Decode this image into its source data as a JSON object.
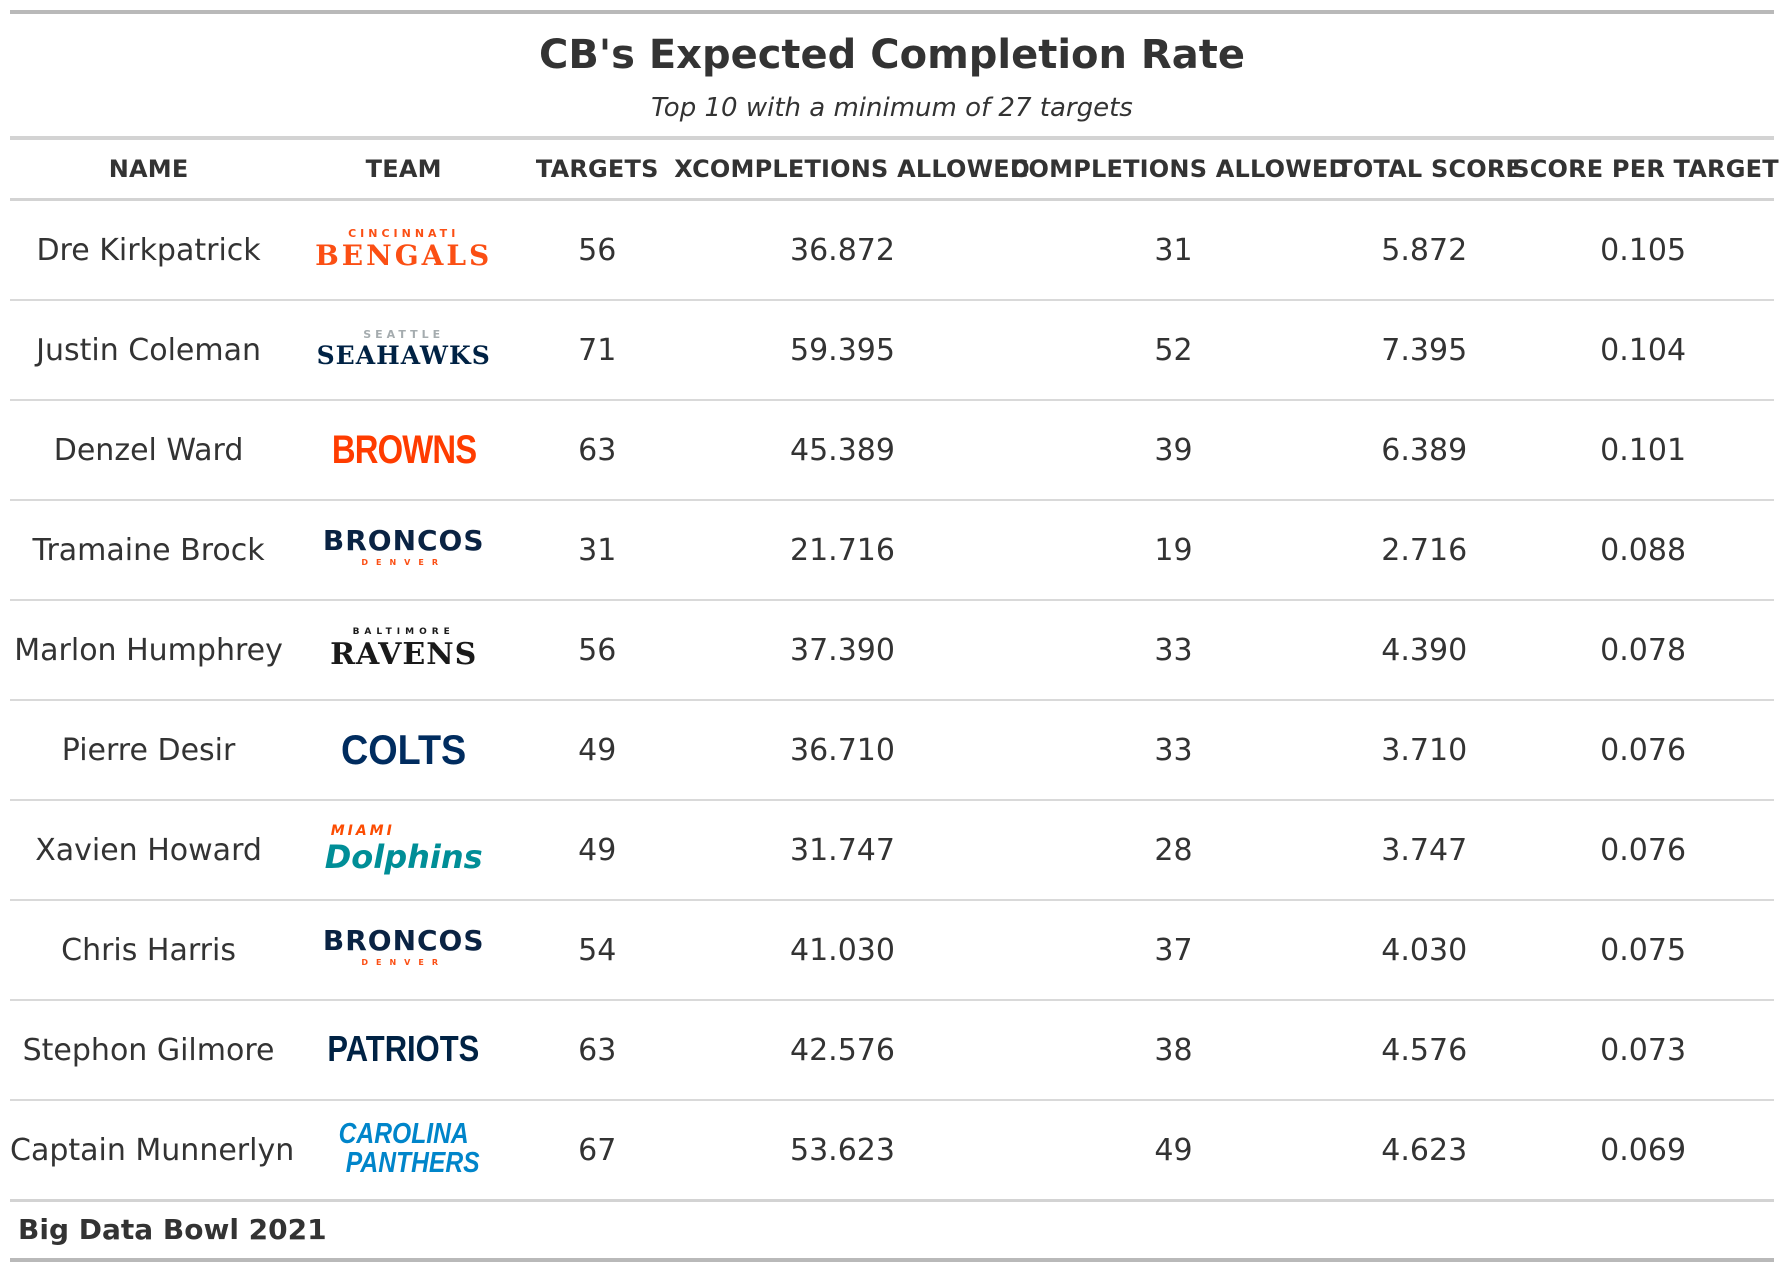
{
  "header": {
    "title": "CB's Expected Completion Rate",
    "subtitle": "Top 10 with a minimum of 27 targets"
  },
  "footer": {
    "source": "Big Data Bowl 2021"
  },
  "chart_data": {
    "type": "table",
    "columns": [
      "NAME",
      "TEAM",
      "TARGETS",
      "XCOMPLETIONS ALLOWED",
      "COMPLETIONS ALLOWED",
      "TOTAL SCORE",
      "SCORE PER TARGET"
    ],
    "rows": [
      {
        "name": "Dre Kirkpatrick",
        "targets": "56",
        "xcompletions": "36.872",
        "completions": "31",
        "total_score": "5.872",
        "score_per_target": "0.105",
        "team": {
          "icon": "bengals-logo",
          "top": "CINCINNATI",
          "main": "BENGALS",
          "bottom": "",
          "color": "#FB4F14",
          "accent": "#FB4F14"
        }
      },
      {
        "name": "Justin Coleman",
        "targets": "71",
        "xcompletions": "59.395",
        "completions": "52",
        "total_score": "7.395",
        "score_per_target": "0.104",
        "team": {
          "icon": "seahawks-logo",
          "top": "SEATTLE",
          "main": "SEAHAWKS",
          "bottom": "",
          "color": "#002244",
          "accent": "#A5ACAF"
        }
      },
      {
        "name": "Denzel Ward",
        "targets": "63",
        "xcompletions": "45.389",
        "completions": "39",
        "total_score": "6.389",
        "score_per_target": "0.101",
        "team": {
          "icon": "browns-logo",
          "top": "",
          "main": "BROWNS",
          "bottom": "",
          "color": "#FF3C00",
          "accent": "#FF3C00"
        }
      },
      {
        "name": "Tramaine Brock",
        "targets": "31",
        "xcompletions": "21.716",
        "completions": "19",
        "total_score": "2.716",
        "score_per_target": "0.088",
        "team": {
          "icon": "broncos-logo",
          "top": "",
          "main": "BRONCOS",
          "bottom": "DENVER",
          "color": "#0A2343",
          "accent": "#FB4F14"
        }
      },
      {
        "name": "Marlon Humphrey",
        "targets": "56",
        "xcompletions": "37.390",
        "completions": "33",
        "total_score": "4.390",
        "score_per_target": "0.078",
        "team": {
          "icon": "ravens-logo",
          "top": "BALTIMORE",
          "main": "RAVENS",
          "bottom": "",
          "color": "#1a1a1a",
          "accent": "#1a1a1a"
        }
      },
      {
        "name": "Pierre Desir",
        "targets": "49",
        "xcompletions": "36.710",
        "completions": "33",
        "total_score": "3.710",
        "score_per_target": "0.076",
        "team": {
          "icon": "colts-logo",
          "top": "",
          "main": "COLTS",
          "bottom": "",
          "color": "#002C5F",
          "accent": "#002C5F"
        }
      },
      {
        "name": "Xavien Howard",
        "targets": "49",
        "xcompletions": "31.747",
        "completions": "28",
        "total_score": "3.747",
        "score_per_target": "0.076",
        "team": {
          "icon": "dolphins-logo",
          "top": "MIAMI",
          "main": "Dolphins",
          "bottom": "",
          "color": "#008E97",
          "accent": "#FC4C02"
        }
      },
      {
        "name": "Chris Harris",
        "targets": "54",
        "xcompletions": "41.030",
        "completions": "37",
        "total_score": "4.030",
        "score_per_target": "0.075",
        "team": {
          "icon": "broncos-logo",
          "top": "",
          "main": "BRONCOS",
          "bottom": "DENVER",
          "color": "#0A2343",
          "accent": "#FB4F14"
        }
      },
      {
        "name": "Stephon Gilmore",
        "targets": "63",
        "xcompletions": "42.576",
        "completions": "38",
        "total_score": "4.576",
        "score_per_target": "0.073",
        "team": {
          "icon": "patriots-logo",
          "top": "",
          "main": "PATRIOTS",
          "bottom": "",
          "color": "#002244",
          "accent": "#002244"
        }
      },
      {
        "name": "Captain Munnerlyn",
        "targets": "67",
        "xcompletions": "53.623",
        "completions": "49",
        "total_score": "4.623",
        "score_per_target": "0.069",
        "team": {
          "icon": "panthers-logo",
          "top": "CAROLINA",
          "main": "PANTHERS",
          "bottom": "",
          "color": "#0085CA",
          "accent": "#0085CA"
        }
      }
    ]
  }
}
